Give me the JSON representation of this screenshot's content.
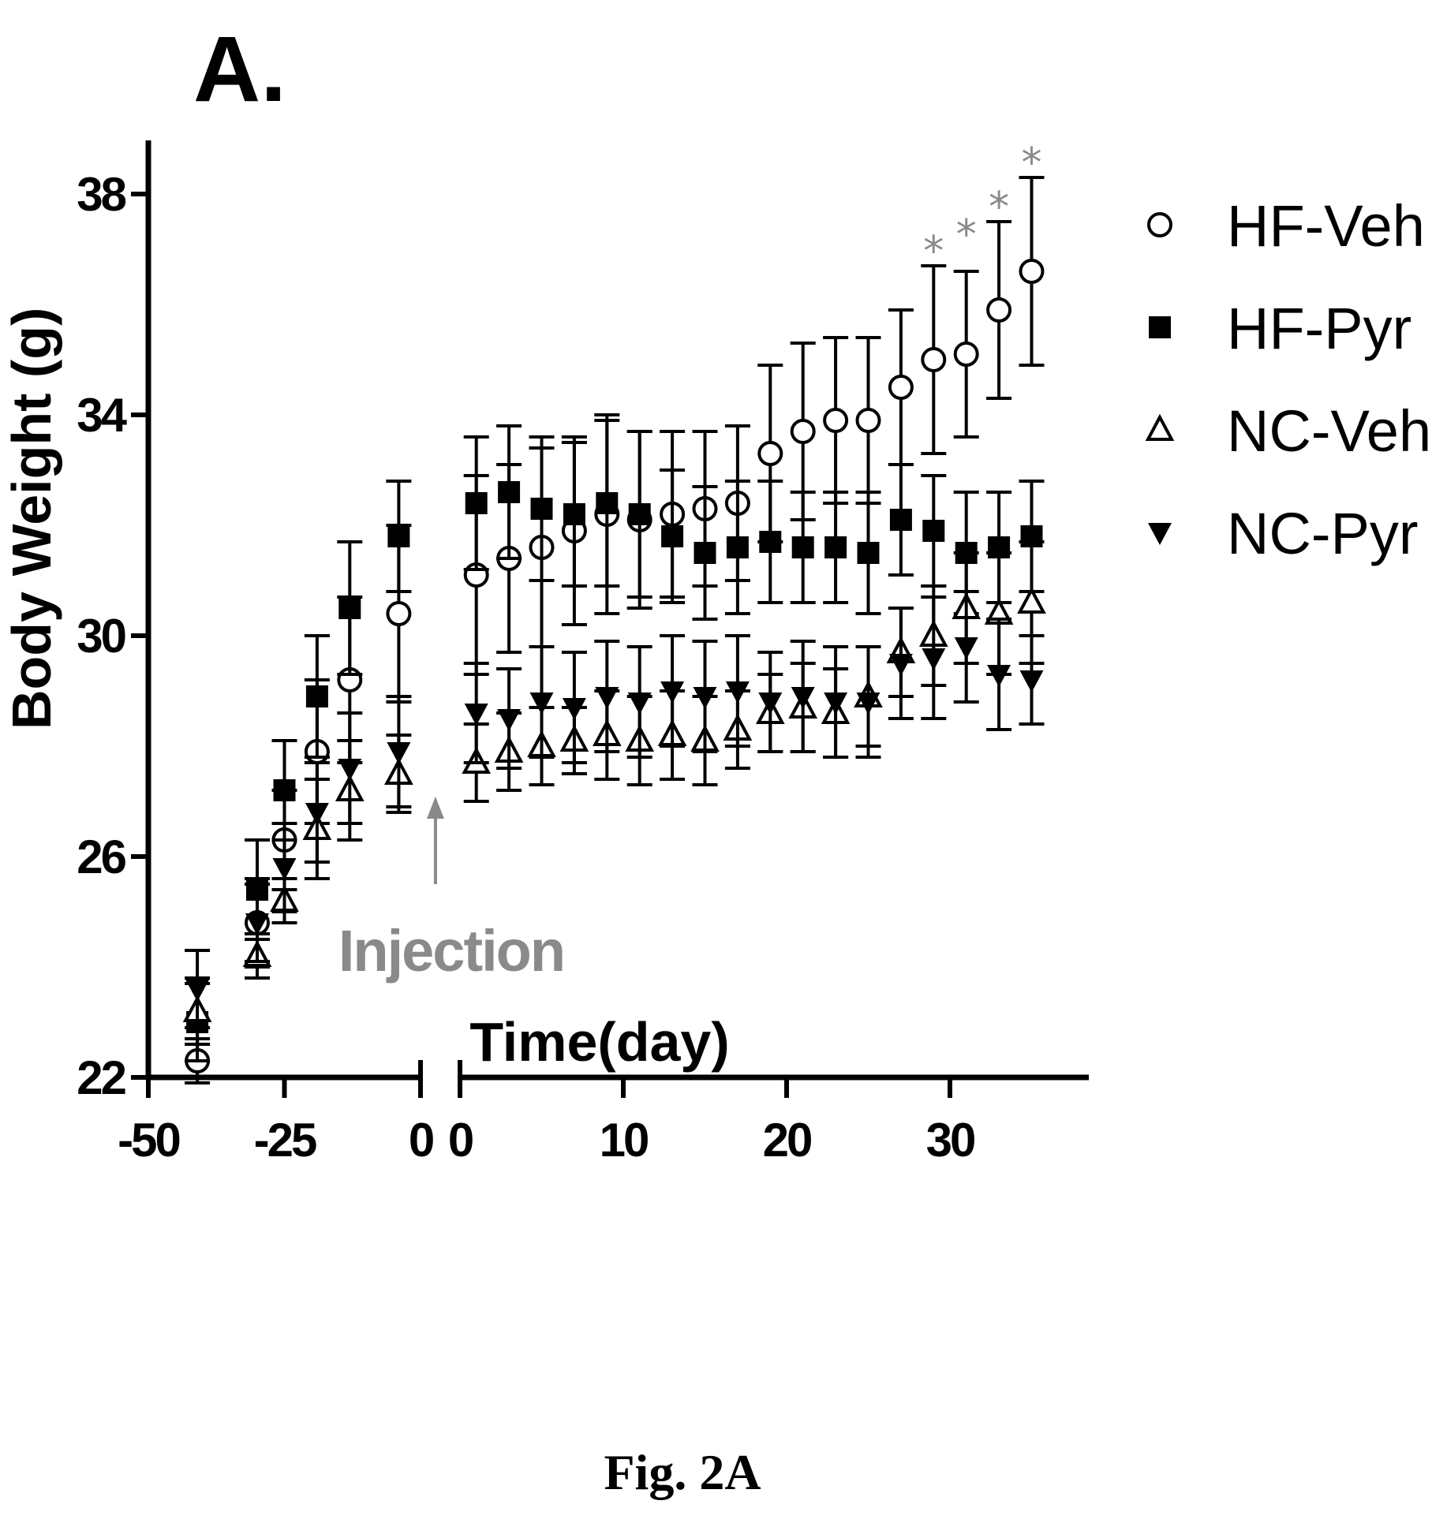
{
  "panel_label": "A.",
  "caption": "Fig. 2A",
  "chart_data": {
    "type": "scatter",
    "xlabel": "Time(day)",
    "ylabel": "Body Weight (g)",
    "ylim": [
      22,
      39
    ],
    "y_ticks": [
      22,
      26,
      30,
      34,
      38
    ],
    "x_segments": [
      {
        "xlim": [
          -50,
          0
        ],
        "ticks": [
          -50,
          -25,
          0
        ]
      },
      {
        "xlim": [
          0,
          38
        ],
        "ticks": [
          0,
          10,
          20,
          30
        ]
      }
    ],
    "x_tick_labels": [
      "-50",
      "-25",
      "0",
      "0",
      "10",
      "20",
      "30"
    ],
    "y_tick_labels": [
      "22",
      "26",
      "30",
      "34",
      "38"
    ],
    "legend": {
      "position": "right-top"
    },
    "series": [
      {
        "name": "HF-Veh",
        "marker": "open-circle",
        "points": [
          {
            "segment": 0,
            "x": -41,
            "y": 22.3,
            "err": 0.4
          },
          {
            "segment": 0,
            "x": -30,
            "y": 24.8,
            "err": 0.8
          },
          {
            "segment": 0,
            "x": -25,
            "y": 26.3,
            "err": 0.9
          },
          {
            "segment": 0,
            "x": -19,
            "y": 27.9,
            "err": 1.3
          },
          {
            "segment": 0,
            "x": -13,
            "y": 29.2,
            "err": 1.5
          },
          {
            "segment": 0,
            "x": -4,
            "y": 30.4,
            "err": 1.6
          },
          {
            "segment": 1,
            "x": 1,
            "y": 31.1,
            "err": 1.8
          },
          {
            "segment": 1,
            "x": 3,
            "y": 31.4,
            "err": 1.7
          },
          {
            "segment": 1,
            "x": 5,
            "y": 31.6,
            "err": 1.8
          },
          {
            "segment": 1,
            "x": 7,
            "y": 31.9,
            "err": 1.7
          },
          {
            "segment": 1,
            "x": 9,
            "y": 32.2,
            "err": 1.8
          },
          {
            "segment": 1,
            "x": 11,
            "y": 32.1,
            "err": 1.6
          },
          {
            "segment": 1,
            "x": 13,
            "y": 32.2,
            "err": 1.5
          },
          {
            "segment": 1,
            "x": 15,
            "y": 32.3,
            "err": 1.4
          },
          {
            "segment": 1,
            "x": 17,
            "y": 32.4,
            "err": 1.4
          },
          {
            "segment": 1,
            "x": 19,
            "y": 33.3,
            "err": 1.6
          },
          {
            "segment": 1,
            "x": 21,
            "y": 33.7,
            "err": 1.6
          },
          {
            "segment": 1,
            "x": 23,
            "y": 33.9,
            "err": 1.5
          },
          {
            "segment": 1,
            "x": 25,
            "y": 33.9,
            "err": 1.5
          },
          {
            "segment": 1,
            "x": 27,
            "y": 34.5,
            "err": 1.4
          },
          {
            "segment": 1,
            "x": 29,
            "y": 35.0,
            "err": 1.7
          },
          {
            "segment": 1,
            "x": 31,
            "y": 35.1,
            "err": 1.5
          },
          {
            "segment": 1,
            "x": 33,
            "y": 35.9,
            "err": 1.6
          },
          {
            "segment": 1,
            "x": 35,
            "y": 36.6,
            "err": 1.7
          }
        ]
      },
      {
        "name": "HF-Pyr",
        "marker": "filled-square",
        "points": [
          {
            "segment": 0,
            "x": -41,
            "y": 23.0,
            "err": 0.7
          },
          {
            "segment": 0,
            "x": -30,
            "y": 25.4,
            "err": 0.9
          },
          {
            "segment": 0,
            "x": -25,
            "y": 27.2,
            "err": 0.9
          },
          {
            "segment": 0,
            "x": -19,
            "y": 28.9,
            "err": 1.1
          },
          {
            "segment": 0,
            "x": -13,
            "y": 30.5,
            "err": 1.2
          },
          {
            "segment": 0,
            "x": -4,
            "y": 31.8,
            "err": 1.0
          },
          {
            "segment": 1,
            "x": 1,
            "y": 32.4,
            "err": 1.2
          },
          {
            "segment": 1,
            "x": 3,
            "y": 32.6,
            "err": 1.2
          },
          {
            "segment": 1,
            "x": 5,
            "y": 32.3,
            "err": 1.3
          },
          {
            "segment": 1,
            "x": 7,
            "y": 32.2,
            "err": 1.3
          },
          {
            "segment": 1,
            "x": 9,
            "y": 32.4,
            "err": 1.5
          },
          {
            "segment": 1,
            "x": 11,
            "y": 32.2,
            "err": 1.5
          },
          {
            "segment": 1,
            "x": 13,
            "y": 31.8,
            "err": 1.2
          },
          {
            "segment": 1,
            "x": 15,
            "y": 31.5,
            "err": 1.2
          },
          {
            "segment": 1,
            "x": 17,
            "y": 31.6,
            "err": 1.2
          },
          {
            "segment": 1,
            "x": 19,
            "y": 31.7,
            "err": 1.1
          },
          {
            "segment": 1,
            "x": 21,
            "y": 31.6,
            "err": 1.0
          },
          {
            "segment": 1,
            "x": 23,
            "y": 31.6,
            "err": 1.0
          },
          {
            "segment": 1,
            "x": 25,
            "y": 31.5,
            "err": 1.1
          },
          {
            "segment": 1,
            "x": 27,
            "y": 32.1,
            "err": 1.0
          },
          {
            "segment": 1,
            "x": 29,
            "y": 31.9,
            "err": 1.0
          },
          {
            "segment": 1,
            "x": 31,
            "y": 31.5,
            "err": 1.1
          },
          {
            "segment": 1,
            "x": 33,
            "y": 31.6,
            "err": 1.0
          },
          {
            "segment": 1,
            "x": 35,
            "y": 31.8,
            "err": 1.0
          }
        ]
      },
      {
        "name": "NC-Veh",
        "marker": "open-triangle",
        "points": [
          {
            "segment": 0,
            "x": -41,
            "y": 23.2,
            "err": 0.6
          },
          {
            "segment": 0,
            "x": -30,
            "y": 24.2,
            "err": 0.4
          },
          {
            "segment": 0,
            "x": -25,
            "y": 25.2,
            "err": 0.4
          },
          {
            "segment": 0,
            "x": -19,
            "y": 26.5,
            "err": 0.9
          },
          {
            "segment": 0,
            "x": -13,
            "y": 27.2,
            "err": 0.9
          },
          {
            "segment": 0,
            "x": -4,
            "y": 27.5,
            "err": 0.7
          },
          {
            "segment": 1,
            "x": 1,
            "y": 27.7,
            "err": 0.7
          },
          {
            "segment": 1,
            "x": 3,
            "y": 27.9,
            "err": 0.7
          },
          {
            "segment": 1,
            "x": 5,
            "y": 28.0,
            "err": 0.7
          },
          {
            "segment": 1,
            "x": 7,
            "y": 28.1,
            "err": 0.6
          },
          {
            "segment": 1,
            "x": 9,
            "y": 28.2,
            "err": 0.8
          },
          {
            "segment": 1,
            "x": 11,
            "y": 28.1,
            "err": 0.8
          },
          {
            "segment": 1,
            "x": 13,
            "y": 28.2,
            "err": 0.8
          },
          {
            "segment": 1,
            "x": 15,
            "y": 28.1,
            "err": 0.8
          },
          {
            "segment": 1,
            "x": 17,
            "y": 28.3,
            "err": 0.7
          },
          {
            "segment": 1,
            "x": 19,
            "y": 28.6,
            "err": 0.7
          },
          {
            "segment": 1,
            "x": 21,
            "y": 28.7,
            "err": 0.8
          },
          {
            "segment": 1,
            "x": 23,
            "y": 28.6,
            "err": 0.8
          },
          {
            "segment": 1,
            "x": 25,
            "y": 28.9,
            "err": 0.9
          },
          {
            "segment": 1,
            "x": 27,
            "y": 29.7,
            "err": 0.8
          },
          {
            "segment": 1,
            "x": 29,
            "y": 30.0,
            "err": 0.9
          },
          {
            "segment": 1,
            "x": 31,
            "y": 30.5,
            "err": 1.0
          },
          {
            "segment": 1,
            "x": 33,
            "y": 30.4,
            "err": 1.1
          },
          {
            "segment": 1,
            "x": 35,
            "y": 30.6,
            "err": 1.1
          }
        ]
      },
      {
        "name": "NC-Pyr",
        "marker": "filled-inverted-triangle",
        "points": [
          {
            "segment": 0,
            "x": -41,
            "y": 23.6,
            "err": 0.7
          },
          {
            "segment": 0,
            "x": -30,
            "y": 24.8,
            "err": 0.7
          },
          {
            "segment": 0,
            "x": -25,
            "y": 25.8,
            "err": 0.8
          },
          {
            "segment": 0,
            "x": -19,
            "y": 26.8,
            "err": 0.9
          },
          {
            "segment": 0,
            "x": -13,
            "y": 27.6,
            "err": 1.0
          },
          {
            "segment": 0,
            "x": -4,
            "y": 27.9,
            "err": 1.0
          },
          {
            "segment": 1,
            "x": 1,
            "y": 28.6,
            "err": 0.9
          },
          {
            "segment": 1,
            "x": 3,
            "y": 28.5,
            "err": 0.9
          },
          {
            "segment": 1,
            "x": 5,
            "y": 28.8,
            "err": 1.0
          },
          {
            "segment": 1,
            "x": 7,
            "y": 28.7,
            "err": 1.0
          },
          {
            "segment": 1,
            "x": 9,
            "y": 28.9,
            "err": 1.0
          },
          {
            "segment": 1,
            "x": 11,
            "y": 28.8,
            "err": 1.0
          },
          {
            "segment": 1,
            "x": 13,
            "y": 29.0,
            "err": 1.0
          },
          {
            "segment": 1,
            "x": 15,
            "y": 28.9,
            "err": 1.0
          },
          {
            "segment": 1,
            "x": 17,
            "y": 29.0,
            "err": 1.0
          },
          {
            "segment": 1,
            "x": 19,
            "y": 28.8,
            "err": 0.9
          },
          {
            "segment": 1,
            "x": 21,
            "y": 28.9,
            "err": 1.0
          },
          {
            "segment": 1,
            "x": 23,
            "y": 28.8,
            "err": 1.0
          },
          {
            "segment": 1,
            "x": 25,
            "y": 28.8,
            "err": 1.0
          },
          {
            "segment": 1,
            "x": 27,
            "y": 29.5,
            "err": 1.0
          },
          {
            "segment": 1,
            "x": 29,
            "y": 29.6,
            "err": 1.1
          },
          {
            "segment": 1,
            "x": 31,
            "y": 29.8,
            "err": 1.0
          },
          {
            "segment": 1,
            "x": 33,
            "y": 29.3,
            "err": 1.0
          },
          {
            "segment": 1,
            "x": 35,
            "y": 29.2,
            "err": 0.8
          }
        ]
      }
    ],
    "annotations": [
      {
        "type": "arrow-label",
        "text": "Injection",
        "color": "#8a8a8a",
        "segment": 1,
        "x": -1.5,
        "y_from": 25.5,
        "y_to": 27.0
      },
      {
        "type": "significance",
        "text": "*",
        "color": "#8a8a8a",
        "x": [
          29,
          31,
          33,
          35
        ],
        "y": [
          37.0,
          37.3,
          37.8,
          38.6
        ]
      }
    ]
  }
}
